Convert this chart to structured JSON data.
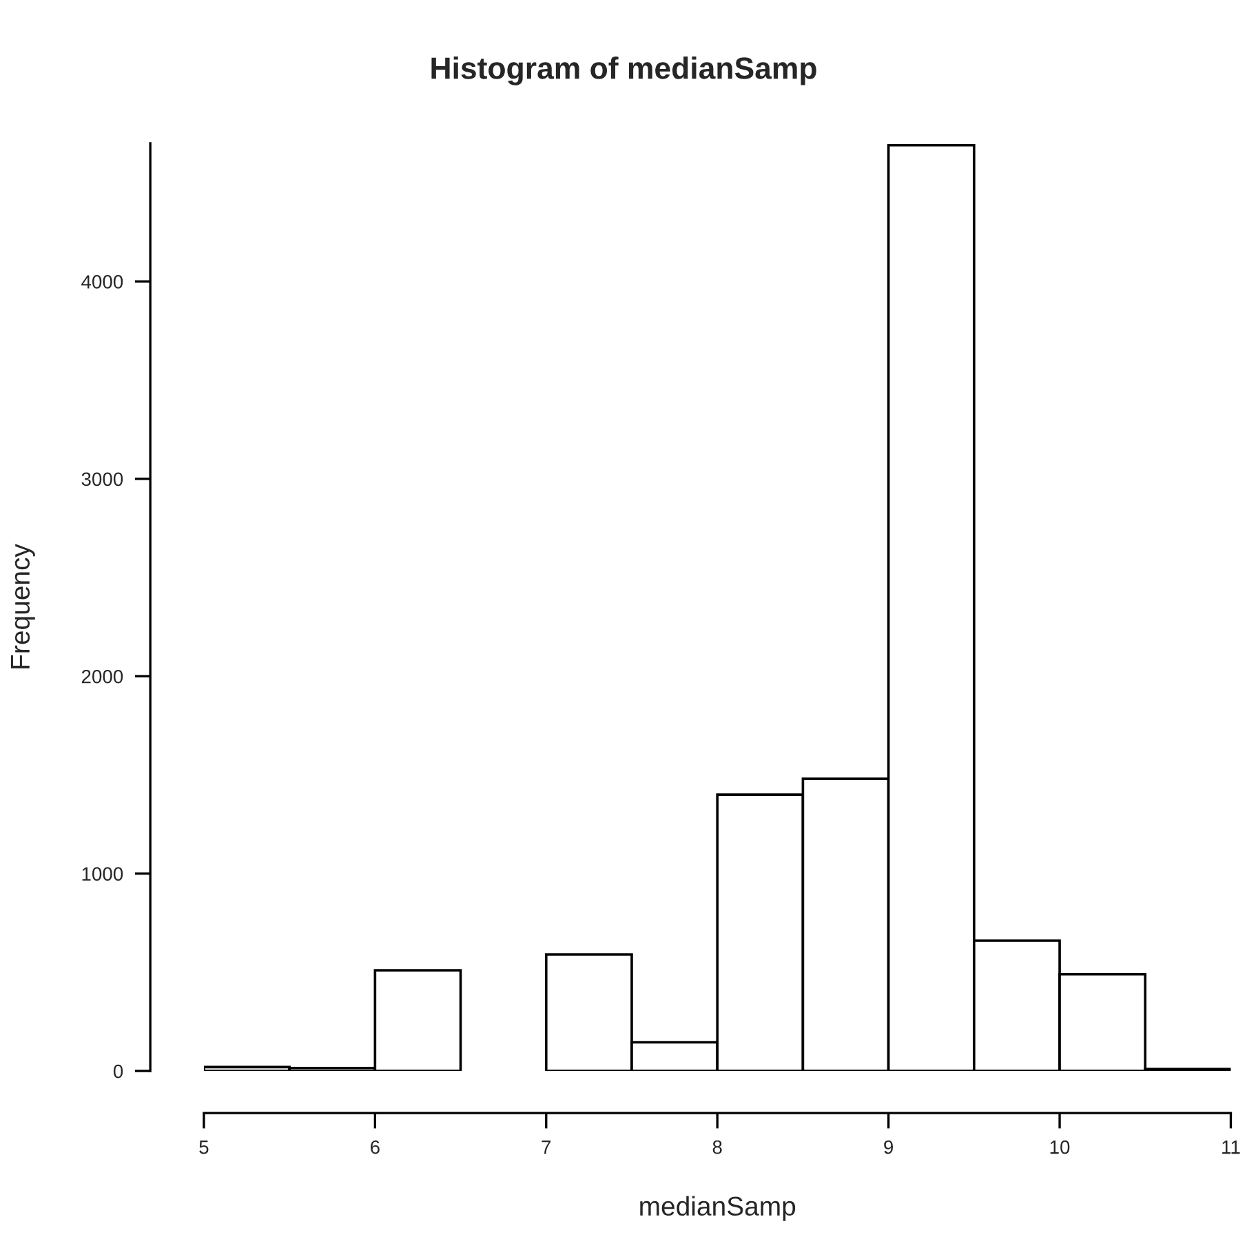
{
  "chart_data": {
    "type": "histogram",
    "title": "Histogram of medianSamp",
    "xlabel": "medianSamp",
    "ylabel": "Frequency",
    "bins": [
      5,
      5.5,
      6,
      6.5,
      7,
      7.5,
      8,
      8.5,
      9,
      9.5,
      10,
      10.5,
      11
    ],
    "values": [
      20,
      15,
      510,
      0,
      590,
      145,
      1400,
      1480,
      4690,
      660,
      490,
      10
    ],
    "color": "#ffffff",
    "xlim": [
      5,
      11
    ],
    "ylim": [
      0,
      4700
    ],
    "xticks": [
      5,
      6,
      7,
      8,
      9,
      10,
      11
    ],
    "yticks": [
      0,
      1000,
      2000,
      3000,
      4000
    ],
    "grid": false
  }
}
